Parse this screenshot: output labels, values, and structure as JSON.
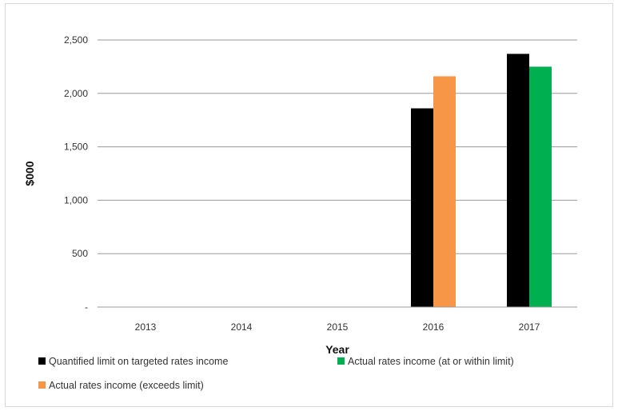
{
  "chart_data": {
    "type": "bar",
    "categories": [
      "2013",
      "2014",
      "2015",
      "2016",
      "2017"
    ],
    "series": [
      {
        "name": "Quantified limit on targeted rates income",
        "color": "#000000",
        "values": [
          null,
          null,
          null,
          1860,
          2370
        ]
      },
      {
        "name": "Actual rates income (exceeds limit)",
        "color": "#f79646",
        "values": [
          null,
          null,
          null,
          2160,
          null
        ]
      },
      {
        "name": "Actual rates income (at or within limit)",
        "color": "#00b050",
        "values": [
          null,
          null,
          null,
          null,
          2250
        ]
      }
    ],
    "xlabel": "Year",
    "ylabel": "$000",
    "ylim": [
      0,
      2500
    ],
    "yticks": [
      {
        "value": 0,
        "label": "-"
      },
      {
        "value": 500,
        "label": "500"
      },
      {
        "value": 1000,
        "label": "1,000"
      },
      {
        "value": 1500,
        "label": "1,500"
      },
      {
        "value": 2000,
        "label": "2,000"
      },
      {
        "value": 2500,
        "label": "2,500"
      }
    ],
    "grid": true,
    "legend_position": "bottom"
  }
}
